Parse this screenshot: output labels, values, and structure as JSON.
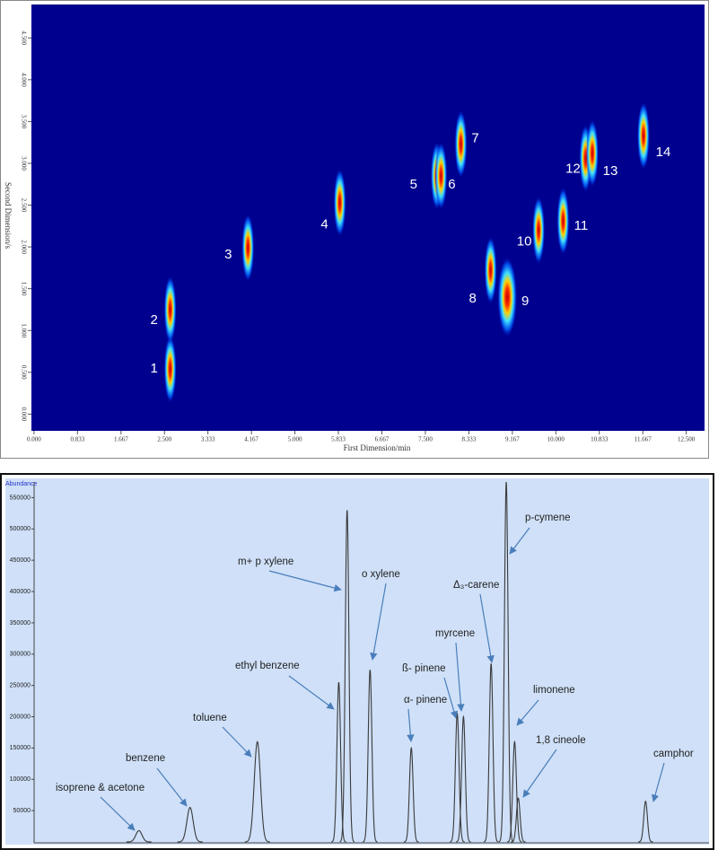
{
  "chart_data": [
    {
      "type": "scatter",
      "x_label": "First Dimension/min",
      "y_label": "Second Dimension/s",
      "x": [
        2.61,
        2.61,
        4.1,
        5.86,
        7.72,
        7.8,
        8.18,
        8.75,
        9.07,
        9.67,
        10.14,
        10.57,
        10.7,
        11.68
      ],
      "values": [
        0.54,
        1.25,
        1.99,
        2.53,
        2.85,
        2.85,
        3.23,
        1.72,
        1.4,
        2.2,
        2.31,
        3.06,
        3.12,
        3.33
      ],
      "labels": [
        "1",
        "2",
        "3",
        "4",
        "5",
        "6",
        "7",
        "8",
        "9",
        "10",
        "11",
        "12",
        "13",
        "14"
      ],
      "xlim": [
        -0.05,
        12.85
      ],
      "ylim": [
        -0.2,
        4.9
      ],
      "xticks": [
        {
          "value": 0,
          "label": "0.000"
        },
        0.833,
        1.667,
        {
          "value": 2.5,
          "label": "2.500"
        },
        3.333,
        4.167,
        {
          "value": 5,
          "label": "5.000"
        },
        5.833,
        6.667,
        {
          "value": 7.5,
          "label": "7.500"
        },
        8.333,
        9.167,
        {
          "value": 10,
          "label": "10.000"
        },
        10.833,
        11.667,
        {
          "value": 12.5,
          "label": "12.500"
        }
      ],
      "yticks": [
        {
          "value": 0,
          "label": "0.000"
        },
        {
          "value": 0.5,
          "label": "0.500"
        },
        {
          "value": 1,
          "label": "1.000"
        },
        {
          "value": 1.5,
          "label": "1.500"
        },
        {
          "value": 2,
          "label": "2.000"
        },
        {
          "value": 2.5,
          "label": "2.500"
        },
        {
          "value": 3,
          "label": "3.000"
        },
        {
          "value": 3.5,
          "label": "3.500"
        },
        {
          "value": 4,
          "label": "4.000"
        },
        {
          "value": 4.5,
          "label": "4.500"
        }
      ]
    },
    {
      "type": "chromatogram",
      "y_label": "Abundance",
      "x": [
        2.01,
        2.99,
        4.28,
        5.84,
        6.0,
        6.44,
        7.23,
        8.11,
        8.23,
        8.76,
        9.05,
        9.21,
        9.28,
        11.72
      ],
      "values": [
        18000,
        55000,
        160000,
        255000,
        530000,
        275000,
        150000,
        205000,
        200000,
        285000,
        575000,
        160000,
        70000,
        65000
      ],
      "peak_labels": [
        "isoprene & acetone",
        "benzene",
        "toluene",
        "ethyl benzene",
        "m+ p xylene",
        "o xylene",
        "α- pinene",
        "ß- pinene",
        "myrcene",
        "Δ₃-carene",
        "p-cymene",
        "limonene",
        "1,8 cineole",
        "camphor"
      ],
      "color": "#3a3a3a",
      "xlim": [
        -0.05,
        12.85
      ],
      "ylim": [
        0,
        575000
      ],
      "yticks": [
        50000,
        100000,
        150000,
        200000,
        250000,
        300000,
        350000,
        400000,
        450000,
        500000,
        550000
      ]
    }
  ]
}
